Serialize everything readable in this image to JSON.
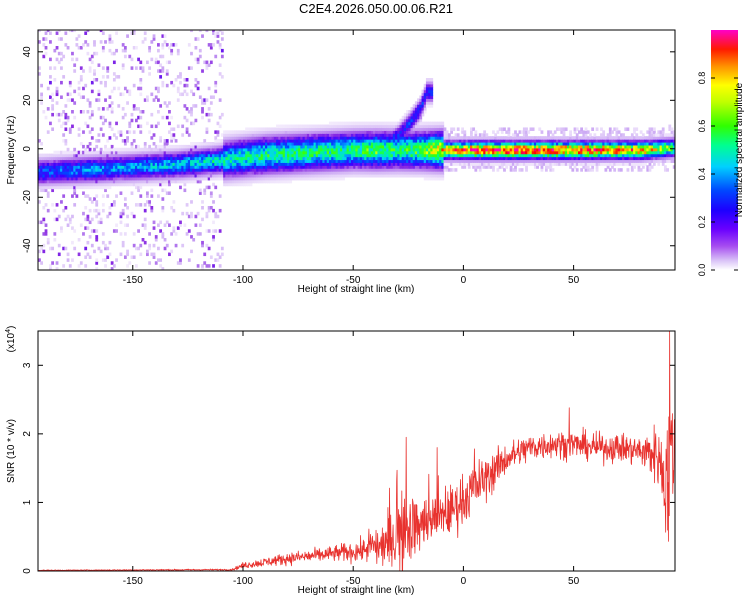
{
  "title": "C2E4.2026.050.00.06.R21",
  "colors": {
    "snr_line": "#e8322e",
    "axis": "#000000",
    "colormap": [
      "#ffffff",
      "#c9a4f3",
      "#8a2be2",
      "#3d00ff",
      "#0046ff",
      "#00d0ff",
      "#00ff80",
      "#40ff00",
      "#ffff00",
      "#ff8000",
      "#ff0000",
      "#ff00c0"
    ]
  },
  "chart_data": [
    {
      "type": "heatmap",
      "name": "spectrogram",
      "xlabel": "Height of straight line (km)",
      "ylabel": "Frequency (Hz)",
      "xlim": [
        -193,
        96
      ],
      "ylim": [
        -50,
        49
      ],
      "x_ticks": [
        -150,
        -100,
        -50,
        0,
        50
      ],
      "x_tick_labels": [
        "-150",
        "-100",
        "-50",
        "0",
        "50"
      ],
      "y_ticks": [
        -40,
        -20,
        0,
        20,
        40
      ],
      "y_tick_labels": [
        "-40",
        "-20",
        "0",
        "20",
        "40"
      ],
      "colorbar": {
        "label": "Normalized spectral amplitude",
        "range": [
          0,
          1
        ],
        "ticks": [
          0.0,
          0.2,
          0.4,
          0.6,
          0.8
        ],
        "tick_labels": [
          "0.0",
          "0.2",
          "0.4",
          "0.6",
          "0.8"
        ]
      },
      "ridge": {
        "x": [
          -193,
          -170,
          -150,
          -130,
          -110,
          -90,
          -70,
          -50,
          -40,
          -30,
          -20,
          -10,
          0,
          20,
          40,
          60,
          80,
          95
        ],
        "y": [
          -10,
          -9,
          -8,
          -7,
          -5,
          -3,
          -2,
          -1,
          -1,
          -1,
          -1,
          -1,
          -1,
          -1,
          -1,
          -1,
          -1,
          0
        ],
        "amp": [
          0.35,
          0.4,
          0.42,
          0.45,
          0.5,
          0.55,
          0.55,
          0.55,
          0.6,
          0.55,
          0.6,
          0.75,
          0.85,
          0.9,
          0.85,
          0.85,
          0.8,
          0.6
        ]
      },
      "feature": {
        "x": [
          -35,
          -30,
          -25,
          -20,
          -17
        ],
        "y": [
          2,
          5,
          10,
          16,
          23
        ]
      },
      "noise_region_x": [
        -193,
        -110
      ]
    },
    {
      "type": "line",
      "name": "snr",
      "xlabel": "Height of straight line (km)",
      "ylabel": "SNR (10 * v/v)",
      "multiplier_label": "(x10",
      "multiplier_exp": "4",
      "multiplier_close": ")",
      "xlim": [
        -193,
        96
      ],
      "ylim": [
        0,
        3.5
      ],
      "x_ticks": [
        -150,
        -100,
        -50,
        0,
        50
      ],
      "x_tick_labels": [
        "-150",
        "-100",
        "-50",
        "0",
        "50"
      ],
      "y_ticks": [
        0,
        1,
        2,
        3
      ],
      "y_tick_labels": [
        "0",
        "1",
        "2",
        "3"
      ],
      "trend": {
        "x": [
          -193,
          -105,
          -100,
          -80,
          -60,
          -45,
          -35,
          -28,
          -20,
          -10,
          0,
          10,
          20,
          30,
          40,
          50,
          60,
          70,
          80,
          88,
          92,
          95,
          96
        ],
        "y": [
          0.01,
          0.02,
          0.08,
          0.18,
          0.25,
          0.3,
          0.4,
          0.55,
          0.65,
          0.75,
          1.05,
          1.35,
          1.65,
          1.8,
          1.85,
          1.85,
          1.8,
          1.8,
          1.75,
          1.7,
          1.3,
          1.8,
          1.9
        ]
      },
      "noise": {
        "x": [
          -193,
          -105,
          -100,
          -80,
          -60,
          -45,
          -35,
          -28,
          -20,
          -10,
          0,
          10,
          20,
          40,
          60,
          80,
          90,
          93,
          96
        ],
        "y": [
          0.005,
          0.01,
          0.04,
          0.08,
          0.1,
          0.15,
          0.3,
          0.55,
          0.35,
          0.3,
          0.35,
          0.3,
          0.2,
          0.18,
          0.18,
          0.2,
          0.45,
          1.2,
          0.5
        ]
      },
      "spikes": [
        {
          "x": -26,
          "y": 1.95
        },
        {
          "x": -12,
          "y": 1.8
        },
        {
          "x": 5,
          "y": 1.78
        },
        {
          "x": 48,
          "y": 2.38
        },
        {
          "x": 93.5,
          "y": 3.5
        }
      ]
    }
  ]
}
